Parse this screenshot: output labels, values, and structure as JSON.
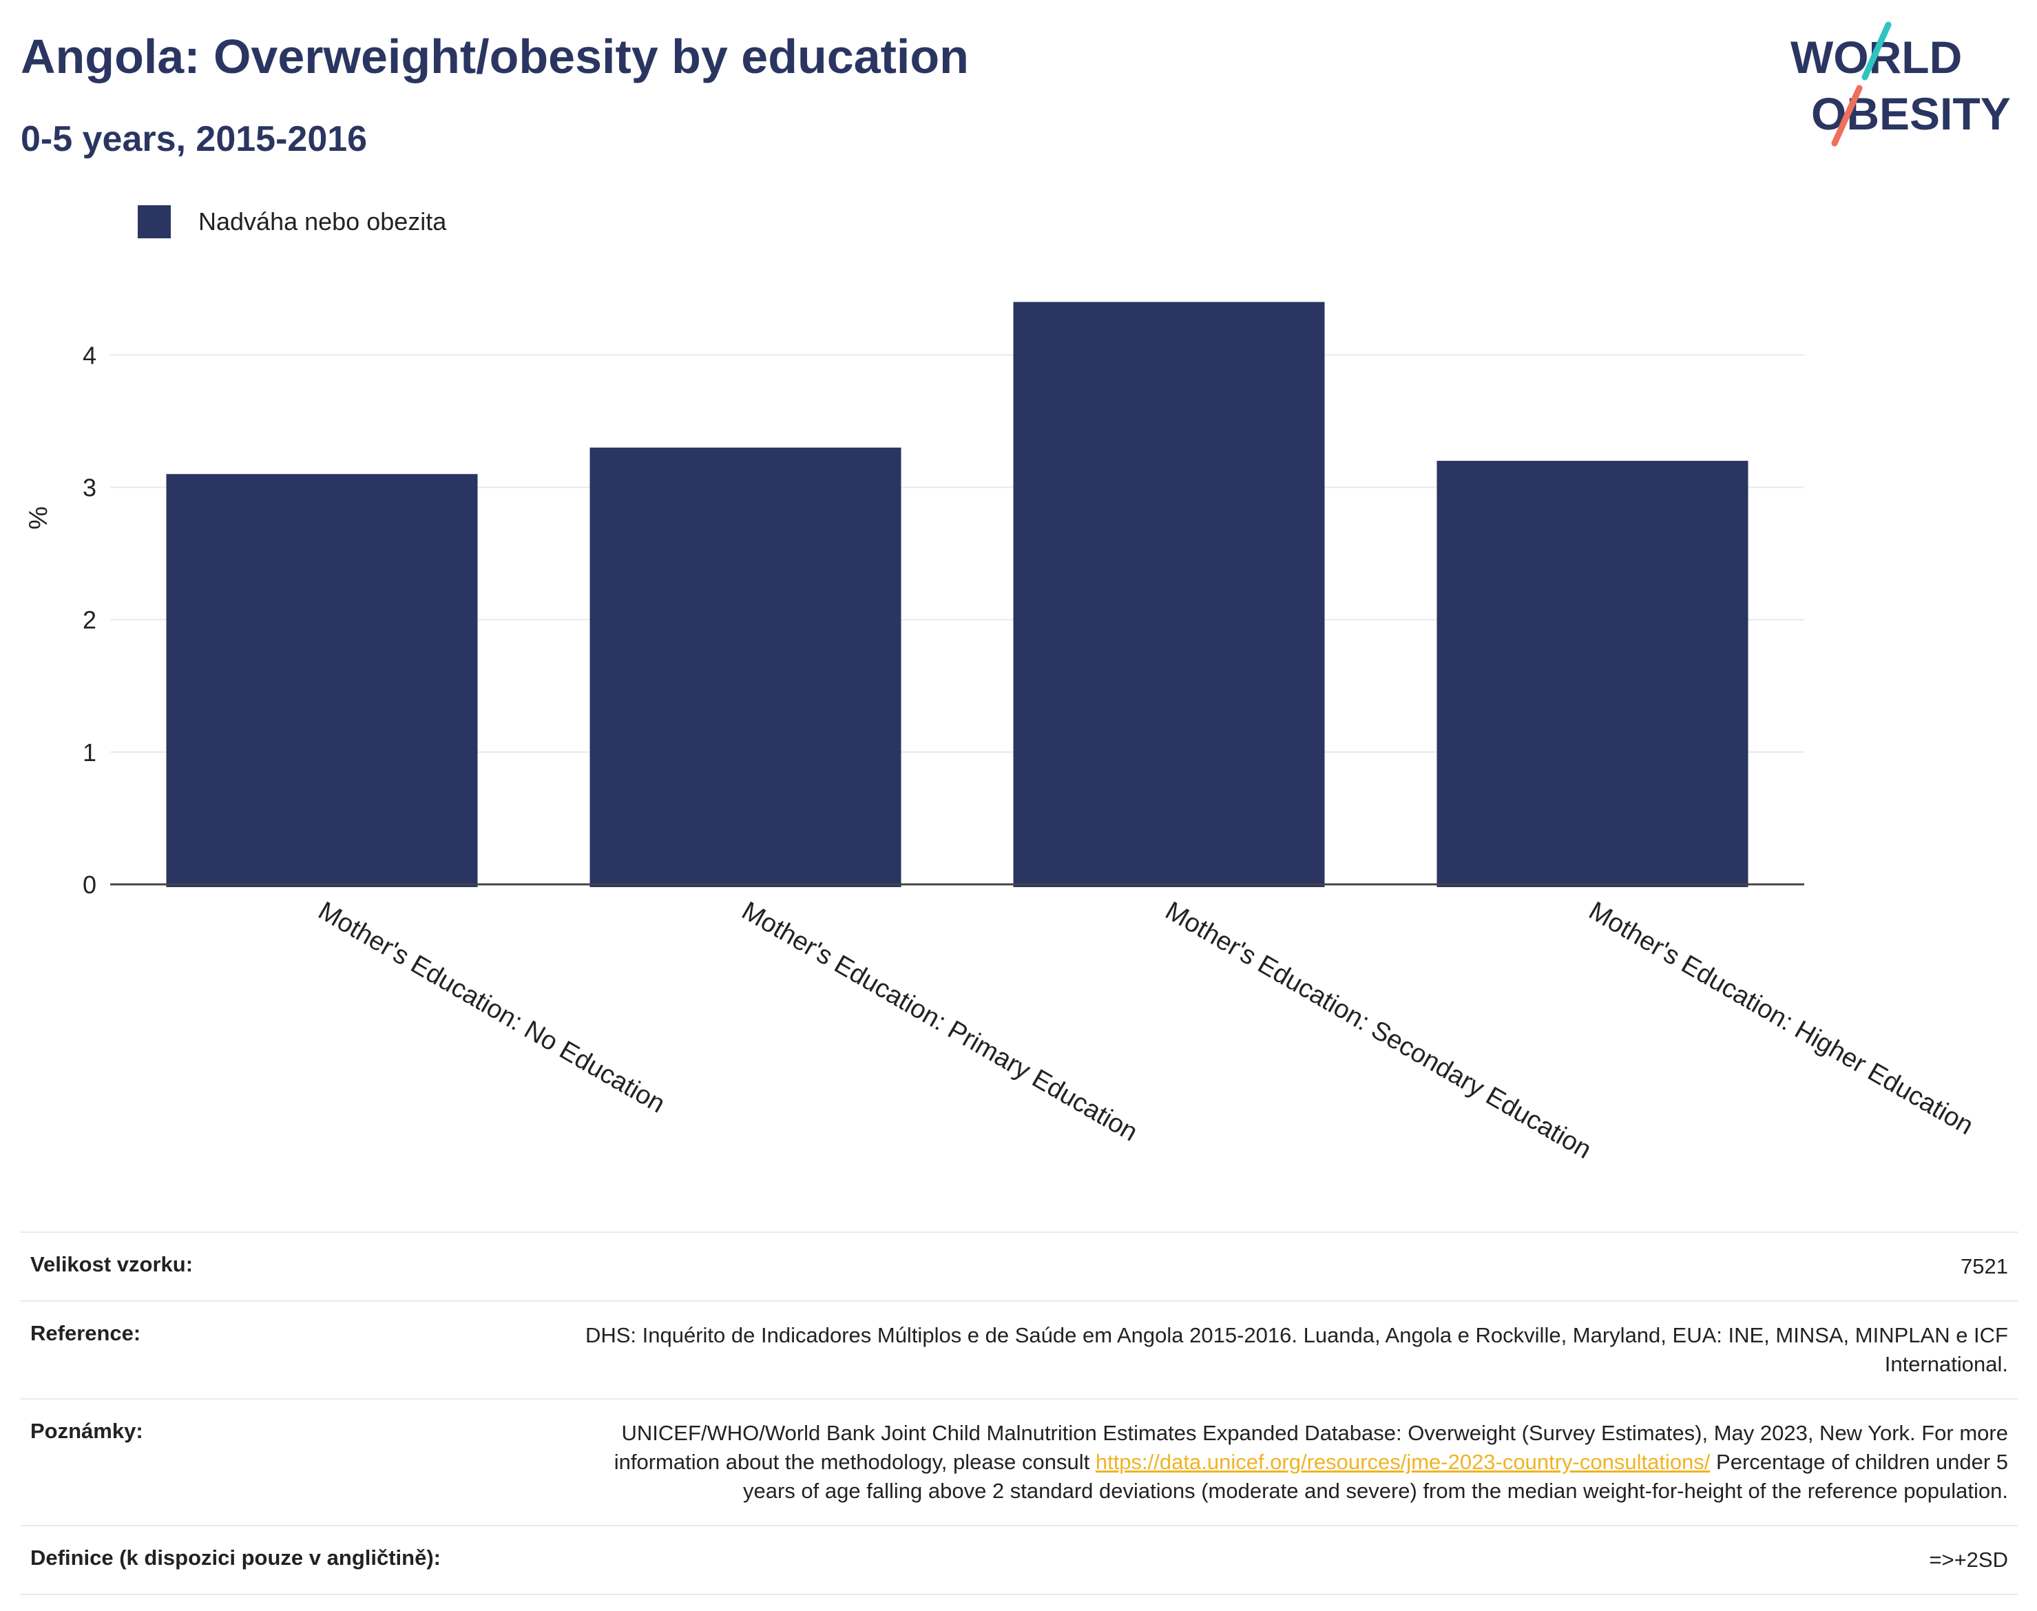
{
  "header": {
    "title": "Angola: Overweight/obesity by education",
    "subtitle": "0-5 years, 2015-2016"
  },
  "logo": {
    "line1": "WORLD",
    "line2": "OBESITY"
  },
  "colors": {
    "bar": "#2a3661",
    "grid": "#e6e9f2",
    "accent_teal": "#2ec4c0",
    "accent_coral": "#ef6f5b",
    "link": "#f0b323"
  },
  "chart_data": {
    "type": "bar",
    "categories": [
      "Mother's Education: No Education",
      "Mother's Education: Primary Education",
      "Mother's Education: Secondary Education",
      "Mother's Education: Higher Education"
    ],
    "series": [
      {
        "name": "Nadváha nebo obezita",
        "values": [
          3.1,
          3.3,
          4.4,
          3.2
        ]
      }
    ],
    "ylabel": "%",
    "ylim": [
      0,
      4.6
    ],
    "yticks": [
      0,
      1,
      2,
      3,
      4
    ],
    "grid": true,
    "legend": "top-left"
  },
  "meta": {
    "sample_label": "Velikost vzorku:",
    "sample_value": "7521",
    "reference_label": "Reference:",
    "reference_value": "DHS: Inquérito de Indicadores Múltiplos e de Saúde em Angola 2015-2016. Luanda, Angola e Rockville, Maryland, EUA: INE, MINSA, MINPLAN e ICF International.",
    "notes_label": "Poznámky:",
    "notes_before": "UNICEF/WHO/World Bank Joint Child Malnutrition Estimates Expanded Database: Overweight (Survey Estimates), May 2023, New York. For more information about the methodology, please consult",
    "notes_link": "https://data.unicef.org/resources/jme-2023-country-consultations/",
    "notes_after": "Percentage of children under 5 years of age falling above 2 standard deviations (moderate and severe) from the median weight-for-height of the reference population.",
    "definition_label": "Definice (k dispozici pouze v angličtině):",
    "definition_value": "=>+2SD"
  }
}
